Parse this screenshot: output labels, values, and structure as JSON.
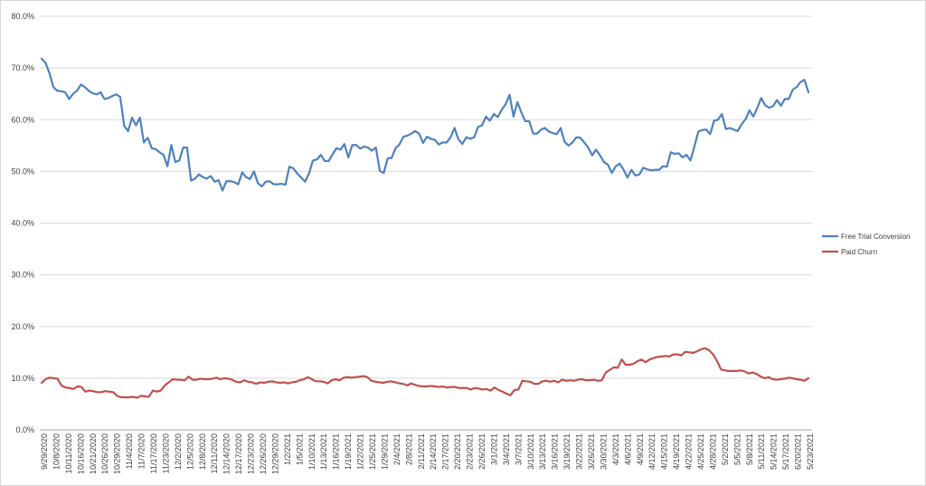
{
  "chart_data": {
    "type": "line",
    "title": "",
    "xlabel": "",
    "ylabel": "",
    "ylim": [
      0,
      80
    ],
    "y_ticks": [
      "0.0%",
      "10.0%",
      "20.0%",
      "30.0%",
      "40.0%",
      "50.0%",
      "60.0%",
      "70.0%",
      "80.0%"
    ],
    "grid": "horizontal",
    "legend_position": "right",
    "x_tick_labels": [
      "9/29/2020",
      "10/8/2020",
      "10/11/2020",
      "10/16/2020",
      "10/21/2020",
      "10/26/2020",
      "10/29/2020",
      "11/4/2020",
      "11/7/2020",
      "11/17/2020",
      "11/23/2020",
      "12/2/2020",
      "12/5/2020",
      "12/8/2020",
      "12/11/2020",
      "12/14/2020",
      "12/17/2020",
      "12/23/2020",
      "12/26/2020",
      "12/29/2020",
      "1/2/2021",
      "1/5/2021",
      "1/10/2021",
      "1/13/2021",
      "1/16/2021",
      "1/19/2021",
      "1/22/2021",
      "1/25/2021",
      "1/29/2021",
      "2/4/2021",
      "2/8/2021",
      "2/11/2021",
      "2/14/2021",
      "2/17/2021",
      "2/20/2021",
      "2/23/2021",
      "2/26/2021",
      "3/1/2021",
      "3/4/2021",
      "3/7/2021",
      "3/10/2021",
      "3/13/2021",
      "3/16/2021",
      "3/19/2021",
      "3/22/2021",
      "3/26/2021",
      "3/30/2021",
      "4/3/2021",
      "4/6/2021",
      "4/9/2021",
      "4/12/2021",
      "4/15/2021",
      "4/19/2021",
      "4/22/2021",
      "4/25/2021",
      "4/28/2021",
      "5/2/2021",
      "5/5/2021",
      "5/8/2021",
      "5/11/2021",
      "5/14/2021",
      "5/17/2021",
      "6/20/2021",
      "5/23/2021"
    ],
    "series": [
      {
        "name": "Free Trial Conversion",
        "color": "#4f81bd",
        "values": [
          71.8,
          71.0,
          69.0,
          66.3,
          65.6,
          65.5,
          65.3,
          64.0,
          65.0,
          65.6,
          66.8,
          66.3,
          65.6,
          65.1,
          64.9,
          65.3,
          64.0,
          64.2,
          64.6,
          64.9,
          64.4,
          58.8,
          57.8,
          60.4,
          58.9,
          60.4,
          55.6,
          56.5,
          54.5,
          54.3,
          53.7,
          53.2,
          51.0,
          55.1,
          51.8,
          52.1,
          54.6,
          54.6,
          48.2,
          48.6,
          49.4,
          48.9,
          48.6,
          49.1,
          48.0,
          48.3,
          46.3,
          48.1,
          48.1,
          47.9,
          47.5,
          49.8,
          48.9,
          48.5,
          50.0,
          47.7,
          47.1,
          48.0,
          48.1,
          47.5,
          47.5,
          47.6,
          47.4,
          50.9,
          50.6,
          49.6,
          48.8,
          48.0,
          49.6,
          52.1,
          52.3,
          53.2,
          52.0,
          52.0,
          53.3,
          54.5,
          54.2,
          55.3,
          52.7,
          55.1,
          55.1,
          54.4,
          54.8,
          54.6,
          54.0,
          54.6,
          50.1,
          49.7,
          52.5,
          52.6,
          54.5,
          55.2,
          56.7,
          56.9,
          57.3,
          57.8,
          57.3,
          55.5,
          56.7,
          56.3,
          56.1,
          55.2,
          55.6,
          55.6,
          56.6,
          58.4,
          56.2,
          55.3,
          56.6,
          56.3,
          56.6,
          58.6,
          58.9,
          60.6,
          59.8,
          61.1,
          60.5,
          61.9,
          63.0,
          64.8,
          60.6,
          63.4,
          61.4,
          59.7,
          59.7,
          57.3,
          57.3,
          58.1,
          58.4,
          57.7,
          57.4,
          57.2,
          58.4,
          55.7,
          55.0,
          55.6,
          56.6,
          56.5,
          55.6,
          54.6,
          53.1,
          54.2,
          53.1,
          51.8,
          51.3,
          49.7,
          51.0,
          51.5,
          50.3,
          48.8,
          50.3,
          49.2,
          49.4,
          50.7,
          50.4,
          50.2,
          50.3,
          50.3,
          51.0,
          50.9,
          53.7,
          53.4,
          53.5,
          52.7,
          53.2,
          52.1,
          54.8,
          57.7,
          58.0,
          58.1,
          57.2,
          59.8,
          60.0,
          61.1,
          58.2,
          58.4,
          58.1,
          57.8,
          59.1,
          60.1,
          61.8,
          60.6,
          62.3,
          64.2,
          62.8,
          62.3,
          62.6,
          63.8,
          62.7,
          64.0,
          64.0,
          65.8,
          66.3,
          67.3,
          67.7,
          65.3
        ]
      },
      {
        "name": "Paid Churn",
        "color": "#c0504d",
        "values": [
          9.1,
          9.8,
          10.1,
          10.0,
          9.9,
          8.6,
          8.2,
          8.1,
          7.9,
          8.4,
          8.3,
          7.4,
          7.6,
          7.5,
          7.3,
          7.3,
          7.5,
          7.4,
          7.3,
          6.6,
          6.3,
          6.3,
          6.3,
          6.4,
          6.2,
          6.6,
          6.5,
          6.4,
          7.6,
          7.4,
          7.6,
          8.6,
          9.2,
          9.8,
          9.7,
          9.7,
          9.6,
          10.3,
          9.7,
          9.7,
          9.9,
          9.8,
          9.8,
          9.9,
          10.1,
          9.8,
          10.0,
          9.9,
          9.7,
          9.3,
          9.2,
          9.6,
          9.3,
          9.2,
          8.9,
          9.2,
          9.1,
          9.3,
          9.4,
          9.2,
          9.1,
          9.2,
          9.0,
          9.2,
          9.3,
          9.6,
          9.8,
          10.2,
          9.8,
          9.4,
          9.4,
          9.3,
          9.0,
          9.6,
          9.8,
          9.6,
          10.1,
          10.2,
          10.1,
          10.2,
          10.3,
          10.4,
          10.2,
          9.5,
          9.3,
          9.2,
          9.1,
          9.3,
          9.4,
          9.2,
          9.0,
          8.9,
          8.6,
          9.0,
          8.7,
          8.5,
          8.4,
          8.4,
          8.5,
          8.4,
          8.3,
          8.4,
          8.2,
          8.3,
          8.3,
          8.1,
          8.1,
          8.1,
          7.8,
          8.1,
          8.0,
          7.8,
          7.9,
          7.6,
          8.2,
          7.7,
          7.4,
          7.0,
          6.7,
          7.7,
          7.8,
          9.5,
          9.4,
          9.3,
          8.9,
          8.9,
          9.4,
          9.5,
          9.3,
          9.5,
          9.2,
          9.7,
          9.5,
          9.6,
          9.5,
          9.7,
          9.8,
          9.6,
          9.6,
          9.7,
          9.5,
          9.6,
          11.1,
          11.6,
          12.1,
          12.0,
          13.6,
          12.6,
          12.6,
          12.8,
          13.3,
          13.6,
          13.1,
          13.6,
          13.9,
          14.1,
          14.2,
          14.3,
          14.2,
          14.6,
          14.6,
          14.4,
          15.1,
          15.0,
          14.9,
          15.2,
          15.6,
          15.8,
          15.4,
          14.6,
          13.3,
          11.7,
          11.5,
          11.4,
          11.4,
          11.4,
          11.5,
          11.3,
          10.9,
          11.1,
          10.8,
          10.3,
          10.0,
          10.2,
          9.8,
          9.7,
          9.8,
          9.9,
          10.1,
          10.0,
          9.8,
          9.7,
          9.5,
          10.0
        ]
      }
    ]
  }
}
